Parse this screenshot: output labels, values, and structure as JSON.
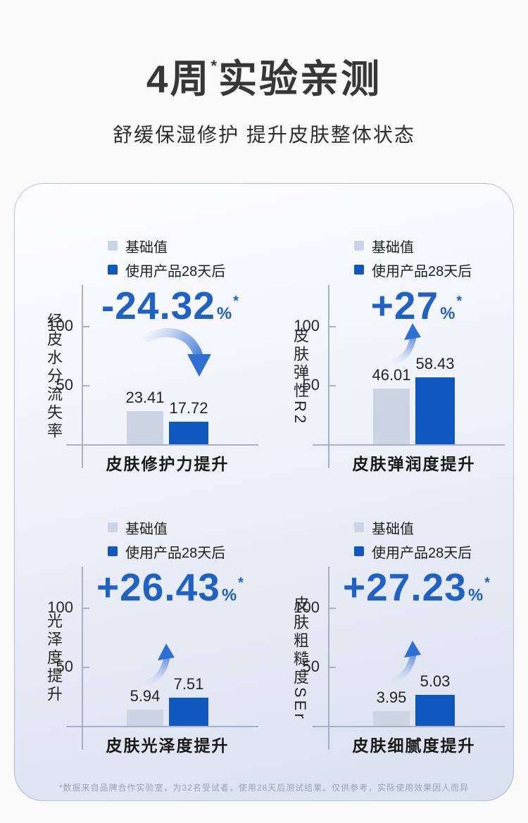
{
  "page": {
    "title_pre": "4周",
    "title_star": "*",
    "title_post": "实验亲测",
    "subtitle": "舒缓保湿修护 提升皮肤整体状态",
    "footnote": "*数据来自品牌合作实验室，为32名受试者，使用28天后测试结果。仅供参考，实际使用效果因人而异"
  },
  "legend": {
    "baseline_label": "基础值",
    "after_label": "使用产品28天后"
  },
  "colors": {
    "baseline_bar": "#ccd4e3",
    "after_bar": "#0f57bf",
    "accent_blue": "#2061c6",
    "axis": "#a6b1c7"
  },
  "chart_data": [
    {
      "type": "bar",
      "title": "皮肤修护力提升",
      "ylabel": "经皮水分流失率",
      "yticks": [
        "100",
        "50"
      ],
      "categories": [
        "基础值",
        "使用产品28天后"
      ],
      "values": [
        "23.41",
        "17.72"
      ],
      "change": "-24.32",
      "change_unit": "%",
      "change_note": "*",
      "trend": "down",
      "legend_position": "top"
    },
    {
      "type": "bar",
      "title": "皮肤弹润度提升",
      "ylabel": "皮肤弹性R2",
      "yticks": [
        "100",
        "50"
      ],
      "categories": [
        "基础值",
        "使用产品28天后"
      ],
      "values": [
        "46.01",
        "58.43"
      ],
      "change": "+27",
      "change_unit": "%",
      "change_note": "*",
      "trend": "up",
      "legend_position": "top"
    },
    {
      "type": "bar",
      "title": "皮肤光泽度提升",
      "ylabel": "光泽度提升",
      "yticks": [
        "100",
        "50"
      ],
      "categories": [
        "基础值",
        "使用产品28天后"
      ],
      "values": [
        "5.94",
        "7.51"
      ],
      "change": "+26.43",
      "change_unit": "%",
      "change_note": "*",
      "trend": "up",
      "legend_position": "top"
    },
    {
      "type": "bar",
      "title": "皮肤细腻度提升",
      "ylabel": "皮肤粗糙度SEr",
      "yticks": [
        "100",
        "50"
      ],
      "categories": [
        "基础值",
        "使用产品28天后"
      ],
      "values": [
        "3.95",
        "5.03"
      ],
      "change": "+27.23",
      "change_unit": "%",
      "change_note": "*",
      "trend": "up",
      "legend_position": "top"
    }
  ]
}
